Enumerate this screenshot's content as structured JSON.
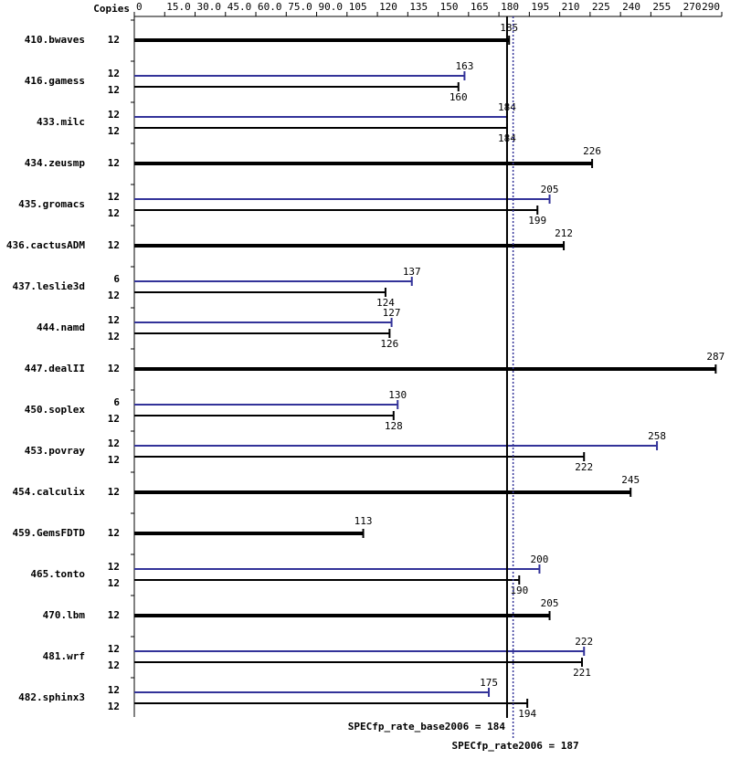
{
  "chart_data": {
    "type": "bar",
    "copies_label": "Copies",
    "categories": [
      "410.bwaves",
      "416.gamess",
      "433.milc",
      "434.zeusmp",
      "435.gromacs",
      "436.cactusADM",
      "437.leslie3d",
      "444.namd",
      "447.dealII",
      "450.soplex",
      "453.povray",
      "454.calculix",
      "459.GemsFDTD",
      "465.tonto",
      "470.lbm",
      "481.wrf",
      "482.sphinx3"
    ],
    "series": [
      {
        "color": "#000000",
        "copies": [
          12,
          12,
          12,
          12,
          12,
          12,
          12,
          12,
          12,
          12,
          12,
          12,
          12,
          12,
          12,
          12,
          12
        ],
        "values": [
          185,
          160,
          184,
          226,
          199,
          212,
          124,
          126,
          287,
          128,
          222,
          245,
          113,
          190,
          205,
          221,
          194
        ]
      },
      {
        "color": "#333399",
        "copies": [
          null,
          12,
          12,
          null,
          12,
          null,
          6,
          12,
          null,
          6,
          12,
          null,
          null,
          12,
          null,
          12,
          12
        ],
        "values": [
          null,
          163,
          184,
          null,
          205,
          null,
          137,
          127,
          null,
          130,
          258,
          null,
          null,
          200,
          null,
          222,
          175
        ]
      }
    ],
    "xlim": [
      0,
      290
    ],
    "xticks": [
      0,
      {
        "value": 15,
        "label": "15.0"
      },
      {
        "value": 30,
        "label": "30.0"
      },
      {
        "value": 45,
        "label": "45.0"
      },
      {
        "value": 60,
        "label": "60.0"
      },
      {
        "value": 75,
        "label": "75.0"
      },
      {
        "value": 90,
        "label": "90.0"
      },
      105,
      120,
      135,
      150,
      165,
      180,
      195,
      210,
      225,
      240,
      255,
      270,
      290
    ],
    "reference_lines": [
      {
        "label": "SPECfp_rate_base2006 = 184",
        "value": 184,
        "color": "#000000",
        "dotted": false
      },
      {
        "label": "SPECfp_rate2006 = 187",
        "value": 187,
        "color": "#333399",
        "dotted": true
      }
    ]
  }
}
